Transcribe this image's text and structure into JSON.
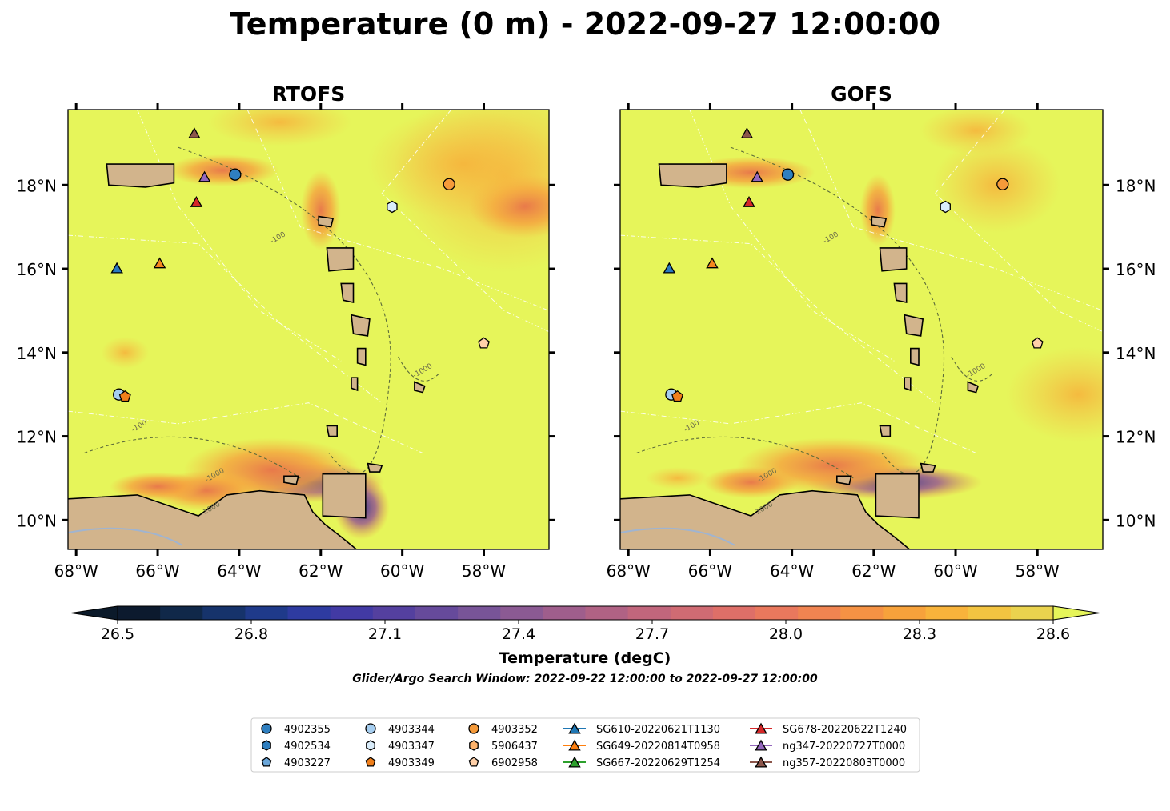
{
  "title": "Temperature (0 m) - 2022-09-27 12:00:00",
  "colors": {
    "land": "#d2b48c",
    "ocean_base": "#e6f55a",
    "warm": "#f5b342",
    "hot": "#e8744a",
    "cool": "#4c3a9c",
    "rivers": "#a0b4d0"
  },
  "panels": [
    {
      "title": "RTOFS",
      "variant": "rtofs"
    },
    {
      "title": "GOFS",
      "variant": "gofs"
    }
  ],
  "axes": {
    "lon_ticks": [
      "68°W",
      "66°W",
      "64°W",
      "62°W",
      "60°W",
      "58°W"
    ],
    "lon_values": [
      -68,
      -66,
      -64,
      -62,
      -60,
      -58
    ],
    "lat_ticks": [
      "18°N",
      "16°N",
      "14°N",
      "12°N",
      "10°N"
    ],
    "lat_values": [
      18,
      16,
      14,
      12,
      10
    ],
    "lon_range": [
      -68.2,
      -56.4
    ],
    "lat_range": [
      9.3,
      19.8
    ]
  },
  "contour_labels": [
    "-100",
    "-1000"
  ],
  "colorbar": {
    "label": "Temperature (degC)",
    "ticks": [
      "26.5",
      "26.8",
      "27.1",
      "27.4",
      "27.7",
      "28.0",
      "28.3",
      "28.6"
    ],
    "range": [
      26.5,
      28.6
    ],
    "colors": [
      "#0c1a2e",
      "#102849",
      "#16336b",
      "#1f3a8a",
      "#2e3ba0",
      "#423aa4",
      "#54409f",
      "#664a9b",
      "#785498",
      "#8b5a93",
      "#9f5e8c",
      "#b06284",
      "#c1667c",
      "#d06b73",
      "#de6f68",
      "#e9785d",
      "#f08451",
      "#f59244",
      "#f7a23b",
      "#f8b33b",
      "#f3c441",
      "#ead34e"
    ],
    "under_color": "#0b1a2a",
    "over_color": "#e6f55a"
  },
  "search_window": "Glider/Argo Search Window: 2022-09-22 12:00:00 to 2022-09-27 12:00:00",
  "observations": [
    {
      "id": "4902355",
      "marker": "circle",
      "color": "#2f7fc0",
      "lon": -64.1,
      "lat": 18.25
    },
    {
      "id": "4903344",
      "marker": "circle",
      "color": "#a6cef0",
      "lon": -66.95,
      "lat": 13.0
    },
    {
      "id": "4903352",
      "marker": "circle",
      "color": "#f59a3a",
      "lon": -58.85,
      "lat": 18.02
    },
    {
      "id": "4903347",
      "marker": "hexagon",
      "color": "#d9ecfa",
      "lon": -60.25,
      "lat": 17.48
    },
    {
      "id": "4903349",
      "marker": "pentagon",
      "color": "#f07f1a",
      "lon": -66.8,
      "lat": 12.95
    },
    {
      "id": "6902958",
      "marker": "pentagon",
      "color": "#ffd0a8",
      "lon": -58.0,
      "lat": 14.22
    },
    {
      "id": "SG610-20220621T1130",
      "marker": "triangle",
      "color": "#2a78c0",
      "lon": -67.0,
      "lat": 16.0
    },
    {
      "id": "SG649-20220814T0958",
      "marker": "triangle",
      "color": "#f5891f",
      "lon": -65.95,
      "lat": 16.12
    },
    {
      "id": "SG678-20220622T1240",
      "marker": "triangle",
      "color": "#d62728",
      "lon": -65.05,
      "lat": 17.58
    },
    {
      "id": "ng347-20220727T0000",
      "marker": "triangle",
      "color": "#9467bd",
      "lon": -64.85,
      "lat": 18.18
    },
    {
      "id": "ng357-20220803T0000",
      "marker": "triangle",
      "color": "#8c564b",
      "lon": -65.1,
      "lat": 19.22
    }
  ],
  "legend": {
    "columns": [
      [
        {
          "label": "4902355",
          "marker": "circle",
          "color": "#2f7fc0"
        },
        {
          "label": "4902534",
          "marker": "hexagon",
          "color": "#2f7fc0"
        },
        {
          "label": "4903227",
          "marker": "pentagon",
          "color": "#6aa6d9"
        }
      ],
      [
        {
          "label": "4903344",
          "marker": "circle",
          "color": "#a6cef0"
        },
        {
          "label": "4903347",
          "marker": "hexagon",
          "color": "#d9ecfa"
        },
        {
          "label": "4903349",
          "marker": "pentagon",
          "color": "#f07f1a"
        }
      ],
      [
        {
          "label": "4903352",
          "marker": "circle",
          "color": "#f59a3a"
        },
        {
          "label": "5906437",
          "marker": "hexagon",
          "color": "#ffb36b"
        },
        {
          "label": "6902958",
          "marker": "pentagon",
          "color": "#ffd0a8"
        }
      ],
      [
        {
          "label": "SG610-20220621T1130",
          "marker": "triangle-line",
          "color": "#1f77b4"
        },
        {
          "label": "SG649-20220814T0958",
          "marker": "triangle-line",
          "color": "#ff7f0e"
        },
        {
          "label": "SG667-20220629T1254",
          "marker": "triangle-line",
          "color": "#2ca02c"
        }
      ],
      [
        {
          "label": "SG678-20220622T1240",
          "marker": "triangle-line",
          "color": "#d62728"
        },
        {
          "label": "ng347-20220727T0000",
          "marker": "triangle-line",
          "color": "#9467bd"
        },
        {
          "label": "ng357-20220803T0000",
          "marker": "triangle-line",
          "color": "#8c564b"
        }
      ]
    ]
  }
}
